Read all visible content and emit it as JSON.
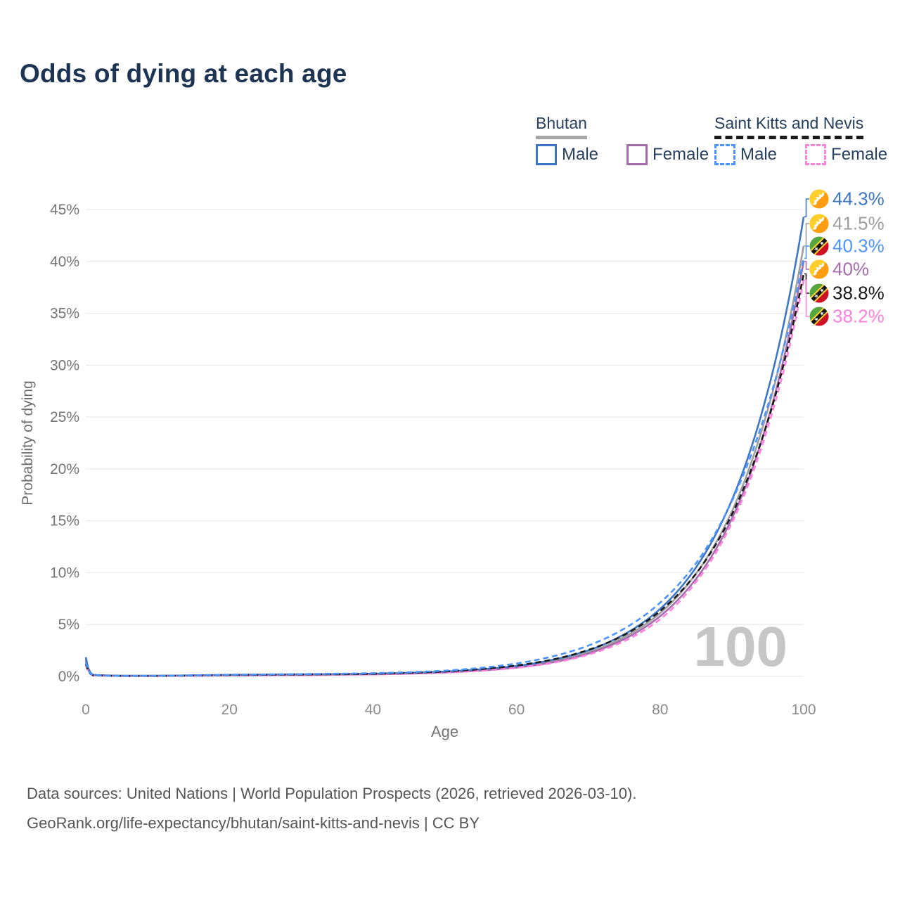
{
  "title": "Odds of dying at each age",
  "legend": {
    "groups": [
      {
        "country": "Bhutan",
        "line_style": "solid",
        "line_color": "#a6a6a6",
        "items": [
          {
            "label": "Male",
            "color": "#3d76c4",
            "dashed": false
          },
          {
            "label": "Female",
            "color": "#a66bad",
            "dashed": false
          }
        ]
      },
      {
        "country": "Saint Kitts and Nevis",
        "line_style": "dashed",
        "line_color": "#1a1a1a",
        "items": [
          {
            "label": "Male",
            "color": "#4d94ff",
            "dashed": true
          },
          {
            "label": "Female",
            "color": "#ff80df",
            "dashed": true
          }
        ]
      }
    ]
  },
  "watermark_age": "100",
  "footer": {
    "line1": "Data sources: United Nations | World Population Prospects (2026, retrieved 2026-03-10).",
    "line2": "GeoRank.org/life-expectancy/bhutan/saint-kitts-and-nevis | CC BY"
  },
  "chart_data": {
    "type": "line",
    "title": "Odds of dying at each age",
    "xlabel": "Age",
    "ylabel": "Probability of dying",
    "xlim": [
      0,
      100
    ],
    "ylim": [
      0,
      45
    ],
    "grid": "horizontal",
    "x_ticks": [
      0,
      20,
      40,
      60,
      80,
      100
    ],
    "y_ticks": [
      "0%",
      "5%",
      "10%",
      "15%",
      "20%",
      "25%",
      "30%",
      "35%",
      "40%",
      "45%"
    ],
    "x": [
      0,
      1,
      5,
      10,
      15,
      20,
      25,
      30,
      35,
      40,
      45,
      50,
      55,
      60,
      65,
      70,
      75,
      80,
      85,
      90,
      95,
      100
    ],
    "units": "percent",
    "series": [
      {
        "name": "Bhutan Male",
        "flag": "bhutan",
        "color": "#3d76c4",
        "dash": false,
        "end_label": "44.3%",
        "values": [
          1.85,
          0.15,
          0.06,
          0.06,
          0.1,
          0.15,
          0.18,
          0.2,
          0.22,
          0.26,
          0.34,
          0.46,
          0.68,
          1.0,
          1.6,
          2.5,
          4.05,
          6.5,
          10.5,
          17.0,
          27.5,
          44.3
        ]
      },
      {
        "name": "Bhutan All",
        "flag": "bhutan",
        "color": "#9e9e9e",
        "dash": false,
        "end_label": "41.5%",
        "values": [
          1.7,
          0.13,
          0.055,
          0.055,
          0.09,
          0.13,
          0.16,
          0.18,
          0.2,
          0.23,
          0.3,
          0.42,
          0.62,
          0.92,
          1.45,
          2.3,
          3.8,
          6.1,
          9.9,
          15.9,
          25.7,
          41.5
        ]
      },
      {
        "name": "Saint Kitts and Nevis Male",
        "flag": "saint-kitts-and-nevis",
        "color": "#4d94ff",
        "dash": true,
        "end_label": "40.3%",
        "values": [
          1.35,
          0.12,
          0.05,
          0.06,
          0.11,
          0.16,
          0.19,
          0.22,
          0.26,
          0.31,
          0.4,
          0.55,
          0.82,
          1.25,
          1.92,
          2.97,
          4.6,
          7.1,
          10.9,
          16.9,
          26.1,
          40.3
        ]
      },
      {
        "name": "Bhutan Female",
        "flag": "bhutan",
        "color": "#a66bad",
        "dash": false,
        "end_label": "40%",
        "values": [
          1.55,
          0.12,
          0.05,
          0.05,
          0.07,
          0.1,
          0.12,
          0.14,
          0.17,
          0.2,
          0.27,
          0.38,
          0.56,
          0.85,
          1.35,
          2.2,
          3.6,
          5.8,
          9.4,
          15.2,
          24.7,
          40.0
        ]
      },
      {
        "name": "Saint Kitts and Nevis All",
        "flag": "saint-kitts-and-nevis",
        "color": "#1a1a1a",
        "dash": true,
        "end_label": "38.8%",
        "values": [
          1.2,
          0.11,
          0.045,
          0.05,
          0.09,
          0.13,
          0.155,
          0.18,
          0.21,
          0.25,
          0.33,
          0.47,
          0.7,
          1.05,
          1.62,
          2.55,
          4.0,
          6.3,
          9.9,
          15.6,
          24.6,
          38.8
        ]
      },
      {
        "name": "Saint Kitts and Nevis Female",
        "flag": "saint-kitts-and-nevis",
        "color": "#ff80df",
        "dash": true,
        "end_label": "38.2%",
        "values": [
          1.1,
          0.1,
          0.04,
          0.045,
          0.07,
          0.1,
          0.12,
          0.14,
          0.16,
          0.19,
          0.26,
          0.37,
          0.55,
          0.83,
          1.3,
          2.1,
          3.4,
          5.5,
          9.1,
          14.8,
          24.0,
          38.2
        ]
      }
    ],
    "legend_position": "top-right",
    "annotations": [
      "100"
    ]
  }
}
